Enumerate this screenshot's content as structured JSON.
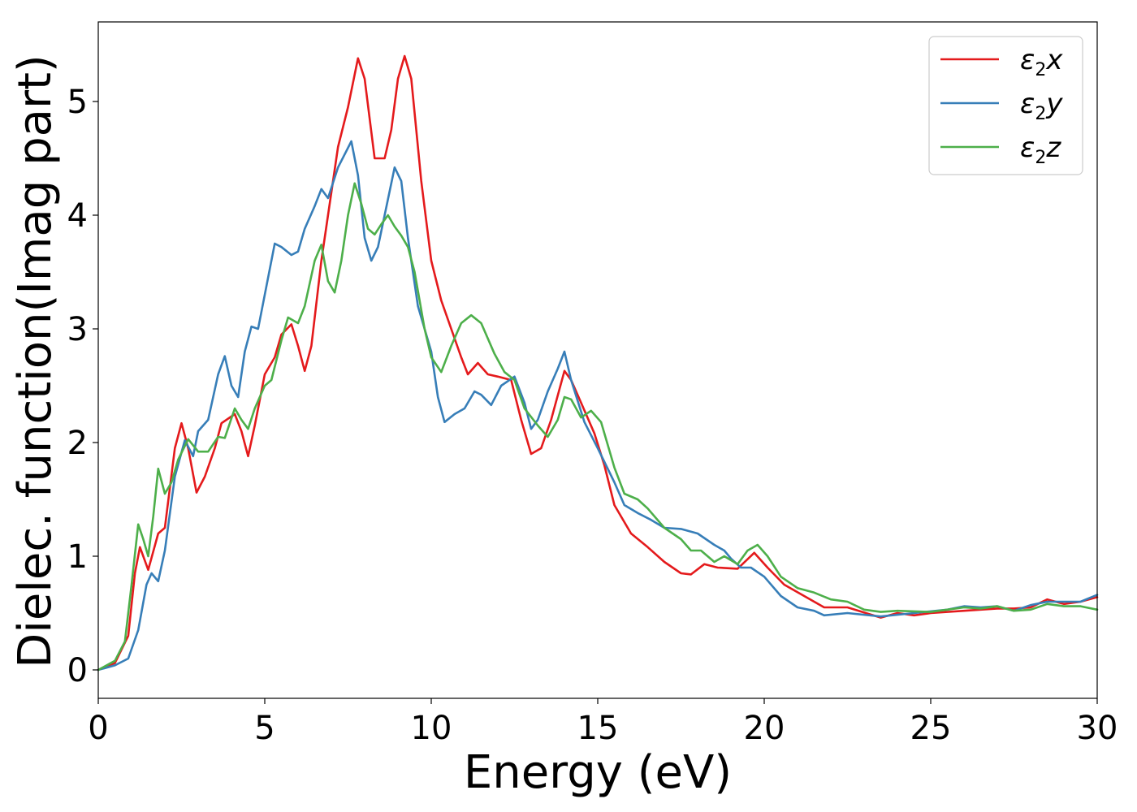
{
  "chart_data": {
    "type": "line",
    "title": "",
    "xlabel": "Energy (eV)",
    "ylabel": "Dielec. function(Imag part)",
    "xlim": [
      0,
      30
    ],
    "ylim": [
      -0.25,
      5.7
    ],
    "xticks": [
      0,
      5,
      10,
      15,
      20,
      25,
      30
    ],
    "yticks": [
      0,
      1,
      2,
      3,
      4,
      5
    ],
    "xtick_labels": [
      "0",
      "5",
      "10",
      "15",
      "20",
      "25",
      "30"
    ],
    "ytick_labels": [
      "0",
      "1",
      "2",
      "3",
      "4",
      "5"
    ],
    "grid": false,
    "legend_position": "top-right",
    "series": [
      {
        "name": "ε2x",
        "label_main": "ε",
        "label_sub": "2",
        "label_var": "x",
        "color": "#e41a1c",
        "points": [
          [
            0,
            0
          ],
          [
            0.5,
            0.06
          ],
          [
            0.9,
            0.3
          ],
          [
            1.1,
            0.85
          ],
          [
            1.25,
            1.08
          ],
          [
            1.5,
            0.88
          ],
          [
            1.8,
            1.2
          ],
          [
            2.0,
            1.25
          ],
          [
            2.3,
            1.95
          ],
          [
            2.5,
            2.17
          ],
          [
            2.7,
            1.95
          ],
          [
            2.95,
            1.56
          ],
          [
            3.2,
            1.7
          ],
          [
            3.5,
            1.95
          ],
          [
            3.7,
            2.17
          ],
          [
            4.1,
            2.25
          ],
          [
            4.3,
            2.1
          ],
          [
            4.5,
            1.88
          ],
          [
            4.7,
            2.15
          ],
          [
            5.0,
            2.6
          ],
          [
            5.3,
            2.75
          ],
          [
            5.5,
            2.95
          ],
          [
            5.8,
            3.04
          ],
          [
            6.0,
            2.85
          ],
          [
            6.2,
            2.63
          ],
          [
            6.4,
            2.85
          ],
          [
            6.7,
            3.6
          ],
          [
            6.9,
            4.0
          ],
          [
            7.2,
            4.6
          ],
          [
            7.5,
            4.95
          ],
          [
            7.8,
            5.38
          ],
          [
            8.0,
            5.2
          ],
          [
            8.3,
            4.5
          ],
          [
            8.6,
            4.5
          ],
          [
            8.8,
            4.75
          ],
          [
            9.0,
            5.2
          ],
          [
            9.2,
            5.4
          ],
          [
            9.4,
            5.2
          ],
          [
            9.7,
            4.3
          ],
          [
            10.0,
            3.6
          ],
          [
            10.3,
            3.25
          ],
          [
            10.6,
            3.0
          ],
          [
            10.9,
            2.75
          ],
          [
            11.1,
            2.6
          ],
          [
            11.4,
            2.7
          ],
          [
            11.7,
            2.6
          ],
          [
            12.0,
            2.58
          ],
          [
            12.4,
            2.55
          ],
          [
            12.7,
            2.2
          ],
          [
            13.0,
            1.9
          ],
          [
            13.3,
            1.95
          ],
          [
            13.6,
            2.2
          ],
          [
            14.0,
            2.63
          ],
          [
            14.2,
            2.55
          ],
          [
            14.5,
            2.35
          ],
          [
            14.9,
            2.08
          ],
          [
            15.2,
            1.8
          ],
          [
            15.5,
            1.45
          ],
          [
            16.0,
            1.2
          ],
          [
            16.5,
            1.08
          ],
          [
            17.0,
            0.95
          ],
          [
            17.5,
            0.85
          ],
          [
            17.8,
            0.84
          ],
          [
            18.2,
            0.93
          ],
          [
            18.6,
            0.9
          ],
          [
            19.2,
            0.89
          ],
          [
            19.7,
            1.03
          ],
          [
            20.1,
            0.9
          ],
          [
            20.6,
            0.75
          ],
          [
            21.2,
            0.65
          ],
          [
            21.8,
            0.55
          ],
          [
            22.5,
            0.55
          ],
          [
            23.5,
            0.46
          ],
          [
            24.0,
            0.5
          ],
          [
            24.5,
            0.48
          ],
          [
            25.0,
            0.5
          ],
          [
            26.0,
            0.52
          ],
          [
            27.0,
            0.54
          ],
          [
            27.5,
            0.54
          ],
          [
            28.0,
            0.55
          ],
          [
            28.5,
            0.62
          ],
          [
            29.0,
            0.58
          ],
          [
            29.5,
            0.6
          ],
          [
            30.0,
            0.64
          ]
        ]
      },
      {
        "name": "ε2y",
        "label_main": "ε",
        "label_sub": "2",
        "label_var": "y",
        "color": "#377eb8",
        "points": [
          [
            0,
            0
          ],
          [
            0.5,
            0.04
          ],
          [
            0.9,
            0.1
          ],
          [
            1.2,
            0.35
          ],
          [
            1.45,
            0.75
          ],
          [
            1.6,
            0.85
          ],
          [
            1.8,
            0.78
          ],
          [
            2.0,
            1.05
          ],
          [
            2.3,
            1.7
          ],
          [
            2.6,
            2.02
          ],
          [
            2.85,
            1.88
          ],
          [
            3.0,
            2.1
          ],
          [
            3.3,
            2.2
          ],
          [
            3.6,
            2.6
          ],
          [
            3.8,
            2.76
          ],
          [
            4.0,
            2.5
          ],
          [
            4.2,
            2.4
          ],
          [
            4.4,
            2.8
          ],
          [
            4.6,
            3.02
          ],
          [
            4.8,
            3.0
          ],
          [
            5.0,
            3.3
          ],
          [
            5.3,
            3.75
          ],
          [
            5.5,
            3.72
          ],
          [
            5.8,
            3.65
          ],
          [
            6.0,
            3.68
          ],
          [
            6.2,
            3.88
          ],
          [
            6.5,
            4.08
          ],
          [
            6.7,
            4.23
          ],
          [
            6.9,
            4.15
          ],
          [
            7.2,
            4.42
          ],
          [
            7.6,
            4.65
          ],
          [
            7.8,
            4.35
          ],
          [
            8.0,
            3.8
          ],
          [
            8.2,
            3.6
          ],
          [
            8.4,
            3.72
          ],
          [
            8.6,
            4.0
          ],
          [
            8.9,
            4.42
          ],
          [
            9.1,
            4.3
          ],
          [
            9.3,
            3.8
          ],
          [
            9.6,
            3.2
          ],
          [
            10.0,
            2.8
          ],
          [
            10.2,
            2.4
          ],
          [
            10.4,
            2.18
          ],
          [
            10.7,
            2.25
          ],
          [
            11.0,
            2.3
          ],
          [
            11.3,
            2.45
          ],
          [
            11.5,
            2.42
          ],
          [
            11.8,
            2.33
          ],
          [
            12.1,
            2.5
          ],
          [
            12.5,
            2.58
          ],
          [
            12.8,
            2.35
          ],
          [
            13.0,
            2.12
          ],
          [
            13.2,
            2.2
          ],
          [
            13.5,
            2.45
          ],
          [
            13.8,
            2.65
          ],
          [
            14.0,
            2.8
          ],
          [
            14.2,
            2.55
          ],
          [
            14.6,
            2.18
          ],
          [
            15.0,
            1.95
          ],
          [
            15.5,
            1.65
          ],
          [
            15.8,
            1.45
          ],
          [
            16.2,
            1.38
          ],
          [
            16.6,
            1.32
          ],
          [
            17.0,
            1.25
          ],
          [
            17.5,
            1.24
          ],
          [
            18.0,
            1.2
          ],
          [
            18.5,
            1.1
          ],
          [
            18.8,
            1.05
          ],
          [
            19.0,
            0.98
          ],
          [
            19.3,
            0.9
          ],
          [
            19.6,
            0.9
          ],
          [
            20.0,
            0.82
          ],
          [
            20.5,
            0.65
          ],
          [
            21.0,
            0.55
          ],
          [
            21.5,
            0.52
          ],
          [
            21.8,
            0.48
          ],
          [
            22.5,
            0.5
          ],
          [
            23.5,
            0.47
          ],
          [
            24.5,
            0.5
          ],
          [
            25.5,
            0.53
          ],
          [
            26.0,
            0.56
          ],
          [
            26.5,
            0.55
          ],
          [
            27.0,
            0.56
          ],
          [
            27.5,
            0.52
          ],
          [
            28.0,
            0.57
          ],
          [
            28.5,
            0.6
          ],
          [
            29.0,
            0.6
          ],
          [
            29.5,
            0.6
          ],
          [
            30.0,
            0.66
          ]
        ]
      },
      {
        "name": "ε2z",
        "label_main": "ε",
        "label_sub": "2",
        "label_var": "z",
        "color": "#4daf4a",
        "points": [
          [
            0,
            0
          ],
          [
            0.5,
            0.08
          ],
          [
            0.8,
            0.25
          ],
          [
            1.0,
            0.75
          ],
          [
            1.2,
            1.28
          ],
          [
            1.35,
            1.15
          ],
          [
            1.5,
            1.0
          ],
          [
            1.65,
            1.35
          ],
          [
            1.8,
            1.77
          ],
          [
            2.0,
            1.55
          ],
          [
            2.2,
            1.65
          ],
          [
            2.4,
            1.85
          ],
          [
            2.7,
            2.03
          ],
          [
            3.0,
            1.92
          ],
          [
            3.3,
            1.92
          ],
          [
            3.6,
            2.05
          ],
          [
            3.8,
            2.04
          ],
          [
            4.1,
            2.3
          ],
          [
            4.3,
            2.2
          ],
          [
            4.5,
            2.12
          ],
          [
            4.7,
            2.3
          ],
          [
            5.0,
            2.5
          ],
          [
            5.2,
            2.55
          ],
          [
            5.5,
            2.9
          ],
          [
            5.7,
            3.1
          ],
          [
            6.0,
            3.05
          ],
          [
            6.2,
            3.2
          ],
          [
            6.5,
            3.6
          ],
          [
            6.7,
            3.74
          ],
          [
            6.9,
            3.42
          ],
          [
            7.1,
            3.32
          ],
          [
            7.3,
            3.6
          ],
          [
            7.5,
            4.0
          ],
          [
            7.7,
            4.28
          ],
          [
            7.9,
            4.1
          ],
          [
            8.1,
            3.88
          ],
          [
            8.3,
            3.83
          ],
          [
            8.5,
            3.92
          ],
          [
            8.7,
            4.0
          ],
          [
            8.9,
            3.9
          ],
          [
            9.1,
            3.82
          ],
          [
            9.3,
            3.72
          ],
          [
            9.5,
            3.5
          ],
          [
            9.8,
            3.0
          ],
          [
            10.0,
            2.75
          ],
          [
            10.3,
            2.62
          ],
          [
            10.6,
            2.85
          ],
          [
            10.9,
            3.05
          ],
          [
            11.2,
            3.12
          ],
          [
            11.5,
            3.05
          ],
          [
            11.9,
            2.78
          ],
          [
            12.2,
            2.62
          ],
          [
            12.5,
            2.55
          ],
          [
            12.8,
            2.3
          ],
          [
            13.2,
            2.15
          ],
          [
            13.5,
            2.05
          ],
          [
            13.8,
            2.2
          ],
          [
            14.0,
            2.4
          ],
          [
            14.2,
            2.38
          ],
          [
            14.5,
            2.22
          ],
          [
            14.8,
            2.28
          ],
          [
            15.1,
            2.18
          ],
          [
            15.5,
            1.78
          ],
          [
            15.8,
            1.55
          ],
          [
            16.2,
            1.5
          ],
          [
            16.5,
            1.42
          ],
          [
            17.0,
            1.25
          ],
          [
            17.5,
            1.15
          ],
          [
            17.8,
            1.05
          ],
          [
            18.1,
            1.05
          ],
          [
            18.5,
            0.95
          ],
          [
            18.8,
            1.0
          ],
          [
            19.2,
            0.93
          ],
          [
            19.5,
            1.05
          ],
          [
            19.8,
            1.1
          ],
          [
            20.1,
            1.0
          ],
          [
            20.5,
            0.82
          ],
          [
            21.0,
            0.72
          ],
          [
            21.5,
            0.68
          ],
          [
            22.0,
            0.62
          ],
          [
            22.5,
            0.6
          ],
          [
            23.0,
            0.53
          ],
          [
            23.5,
            0.51
          ],
          [
            24.0,
            0.52
          ],
          [
            25.0,
            0.51
          ],
          [
            25.5,
            0.53
          ],
          [
            26.0,
            0.55
          ],
          [
            26.5,
            0.54
          ],
          [
            27.0,
            0.56
          ],
          [
            27.5,
            0.52
          ],
          [
            28.0,
            0.53
          ],
          [
            28.5,
            0.58
          ],
          [
            29.0,
            0.56
          ],
          [
            29.5,
            0.56
          ],
          [
            30.0,
            0.53
          ]
        ]
      }
    ]
  }
}
